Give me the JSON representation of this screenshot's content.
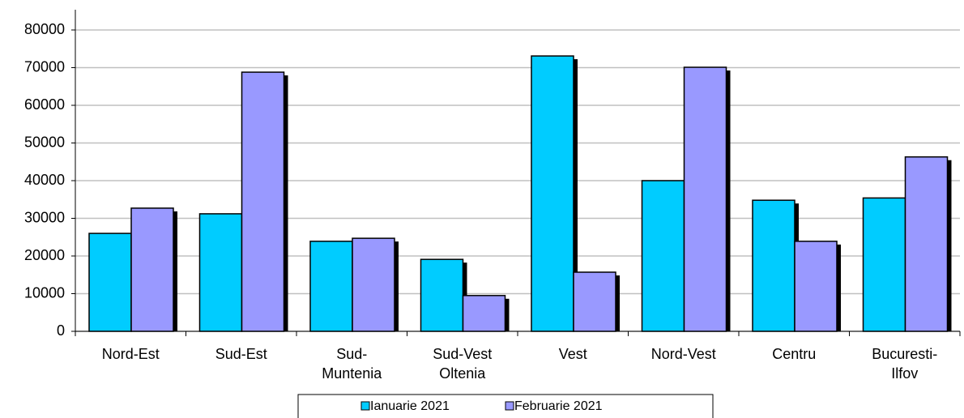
{
  "chart_data": {
    "type": "bar",
    "categories": [
      "Nord-Est",
      "Sud-Est",
      "Sud-\nMuntenia",
      "Sud-Vest\nOltenia",
      "Vest",
      "Nord-Vest",
      "Centru",
      "Bucuresti-\nIlfov"
    ],
    "series": [
      {
        "name": "Ianuarie 2021",
        "color": "#00ccff",
        "values": [
          26000,
          31200,
          23900,
          19100,
          73100,
          40000,
          34800,
          35400
        ]
      },
      {
        "name": "Februarie 2021",
        "color": "#9999ff",
        "values": [
          32700,
          68800,
          24700,
          9500,
          15700,
          70100,
          23900,
          46300
        ]
      }
    ],
    "ylim": [
      0,
      80000
    ],
    "yticks": [
      0,
      10000,
      20000,
      30000,
      40000,
      50000,
      60000,
      70000,
      80000
    ],
    "grid": true,
    "legend": "bottom"
  }
}
